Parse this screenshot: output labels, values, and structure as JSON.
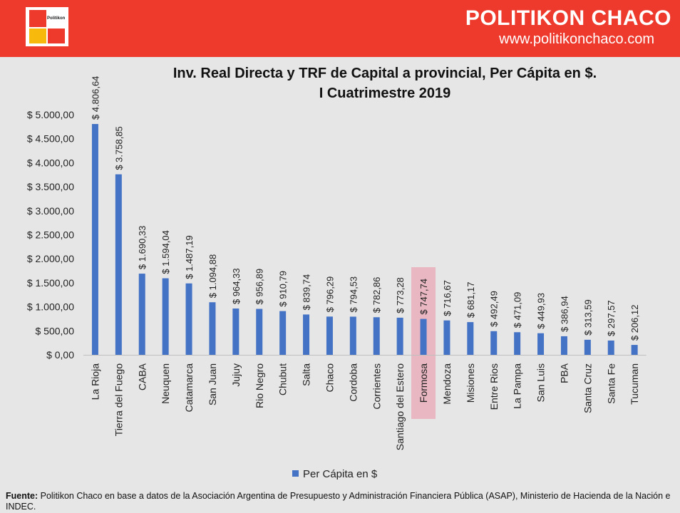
{
  "header": {
    "brand": "POLITIKON CHACO",
    "url": "www.politikonchaco.com",
    "logo_text": "Politikon"
  },
  "chart_data": {
    "type": "bar",
    "title_line1": "Inv. Real  Directa y TRF de Capital a provincial, Per Cápita en $.",
    "title_line2": "I Cuatrimestre 2019",
    "categories": [
      "La Rioja",
      "Tierra del Fuego",
      "CABA",
      "Neuquen",
      "Catamarca",
      "San Juan",
      "Jujuy",
      "Rio Negro",
      "Chubut",
      "Salta",
      "Chaco",
      "Cordoba",
      "Corrientes",
      "Santiago del Estero",
      "Formosa",
      "Mendoza",
      "Misiones",
      "Entre Rios",
      "La Pampa",
      "San Luis",
      "PBA",
      "Santa Cruz",
      "Santa Fe",
      "Tucuman"
    ],
    "series": [
      {
        "name": "Per Cápita en $",
        "values": [
          4806.64,
          3758.85,
          1690.33,
          1594.04,
          1487.19,
          1094.88,
          964.33,
          956.89,
          910.79,
          839.74,
          796.29,
          794.53,
          782.86,
          773.28,
          747.74,
          716.67,
          681.17,
          492.49,
          471.09,
          449.93,
          386.94,
          313.59,
          297.57,
          206.12
        ],
        "labels": [
          "$ 4.806,64",
          "$ 3.758,85",
          "$ 1.690,33",
          "$ 1.594,04",
          "$ 1.487,19",
          "$ 1.094,88",
          "$ 964,33",
          "$ 956,89",
          "$ 910,79",
          "$ 839,74",
          "$ 796,29",
          "$ 794,53",
          "$ 782,86",
          "$ 773,28",
          "$ 747,74",
          "$ 716,67",
          "$ 681,17",
          "$ 492,49",
          "$ 471,09",
          "$ 449,93",
          "$ 386,94",
          "$ 313,59",
          "$ 297,57",
          "$ 206,12"
        ]
      }
    ],
    "ylim": [
      0,
      5000
    ],
    "yticks": [
      0,
      500,
      1000,
      1500,
      2000,
      2500,
      3000,
      3500,
      4000,
      4500,
      5000
    ],
    "ytick_labels": [
      "$ 0,00",
      "$ 500,00",
      "$ 1.000,00",
      "$ 1.500,00",
      "$ 2.000,00",
      "$ 2.500,00",
      "$ 3.000,00",
      "$ 3.500,00",
      "$ 4.000,00",
      "$ 4.500,00",
      "$ 5.000,00"
    ],
    "highlight_category": "Formosa",
    "legend": "Per Cápita en $",
    "legend_position": "bottom",
    "grid": false,
    "bar_color": "#4472c4",
    "highlight_color": "#e8a7b5"
  },
  "footer": {
    "label": "Fuente:",
    "text": " Politikon Chaco en base a datos de la Asociación Argentina de Presupuesto y Administración Financiera Pública (ASAP), Ministerio de Hacienda de la Nación e INDEC."
  }
}
